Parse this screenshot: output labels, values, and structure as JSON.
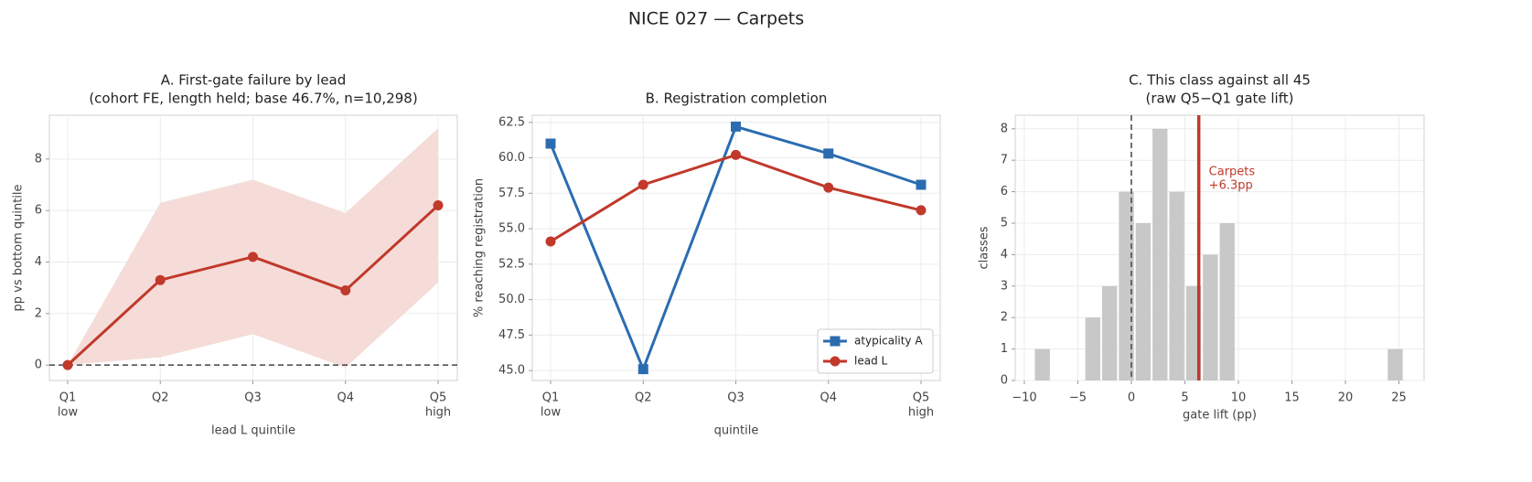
{
  "title": "NICE 027 — Carpets",
  "chart_data": [
    {
      "type": "line",
      "title": [
        "A. First-gate failure by lead",
        "(cohort FE, length held; base 46.7%, n=10,298)"
      ],
      "x_label": "lead L quintile",
      "y_label": "pp vs bottom quintile",
      "categories": [
        "Q1",
        "Q2",
        "Q3",
        "Q4",
        "Q5"
      ],
      "category_notes": [
        "low",
        null,
        null,
        null,
        "high"
      ],
      "series": [
        {
          "color": "#c0392b",
          "marker": "o",
          "values": [
            0,
            3.3,
            4.2,
            2.9,
            6.2
          ],
          "lower": [
            0,
            0.3,
            1.2,
            -0.1,
            3.2
          ],
          "upper": [
            0,
            6.3,
            7.2,
            5.9,
            9.2
          ],
          "band_color": "#f5dcd8"
        }
      ],
      "ylim": [
        -0.6,
        9.7
      ],
      "yticks": [
        0,
        2,
        4,
        6,
        8
      ],
      "grid": true,
      "reference_line_y": 0
    },
    {
      "type": "line",
      "title": [
        "B. Registration completion"
      ],
      "x_label": "quintile",
      "y_label": "% reaching registration",
      "categories": [
        "Q1",
        "Q2",
        "Q3",
        "Q4",
        "Q5"
      ],
      "category_notes": [
        "low",
        null,
        null,
        null,
        "high"
      ],
      "series": [
        {
          "name": "atypicality A",
          "color": "#2b6cb0",
          "marker": "s",
          "values": [
            61.0,
            45.1,
            62.2,
            60.3,
            58.1
          ]
        },
        {
          "name": "lead L",
          "color": "#c0392b",
          "marker": "o",
          "values": [
            54.1,
            58.1,
            60.2,
            57.9,
            56.3
          ]
        }
      ],
      "ylim": [
        44.3,
        63.0
      ],
      "yticks": [
        {
          "value": 45,
          "label": "45.0"
        },
        47.5,
        {
          "value": 50,
          "label": "50.0"
        },
        52.5,
        {
          "value": 55,
          "label": "55.0"
        },
        57.5,
        {
          "value": 60,
          "label": "60.0"
        },
        62.5
      ],
      "grid": true,
      "legend": "lower right"
    },
    {
      "type": "histogram",
      "title": [
        "C. This class against all 45",
        "(raw Q5−Q1 gate lift)"
      ],
      "x_label": "gate lift (pp)",
      "y_label": "classes",
      "color": "#c8c8c8",
      "bins": [
        -9.1,
        -7.53,
        -5.96,
        -4.39,
        -2.82,
        -1.25,
        0.32,
        1.89,
        3.46,
        5.03,
        6.6,
        8.17,
        9.74,
        11.31,
        12.88,
        14.45,
        16.02,
        17.59,
        19.16,
        20.73,
        22.3,
        23.87,
        25.44
      ],
      "counts": [
        1,
        0,
        0,
        2,
        3,
        6,
        5,
        8,
        6,
        3,
        4,
        5,
        0,
        0,
        0,
        0,
        0,
        0,
        0,
        0,
        0,
        1
      ],
      "xlim": [
        -10.85,
        27.35
      ],
      "ylim": [
        0,
        8.43
      ],
      "xticks": [
        {
          "value": -10,
          "label": "−10"
        },
        {
          "value": -5,
          "label": "−5"
        },
        0,
        5,
        10,
        15,
        20,
        25
      ],
      "yticks": [
        0,
        1,
        2,
        3,
        4,
        5,
        6,
        7,
        8
      ],
      "grid": true,
      "reference_line_x": 0,
      "highlight": {
        "x": 6.3,
        "label": [
          "Carpets",
          "+6.3pp"
        ],
        "color": "#c0392b"
      }
    }
  ]
}
